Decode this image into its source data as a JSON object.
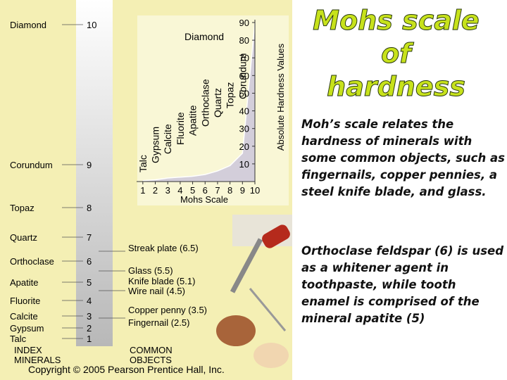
{
  "title_lines": [
    "Mohs scale",
    "of",
    "hardness"
  ],
  "paragraphs": [
    "Moh’s scale relates the hardness of minerals with some common objects, such as fingernails, copper pennies, a steel knife blade, and glass.",
    "Orthoclase feldspar (6) is used as a whitener agent in toothpaste, while tooth enamel is comprised of the mineral apatite (5)"
  ],
  "figure": {
    "index_minerals": [
      {
        "name": "Diamond",
        "hardness": 10
      },
      {
        "name": "Corundum",
        "hardness": 9
      },
      {
        "name": "Topaz",
        "hardness": 8
      },
      {
        "name": "Quartz",
        "hardness": 7
      },
      {
        "name": "Orthoclase",
        "hardness": 6
      },
      {
        "name": "Apatite",
        "hardness": 5
      },
      {
        "name": "Fluorite",
        "hardness": 4
      },
      {
        "name": "Calcite",
        "hardness": 3
      },
      {
        "name": "Gypsum",
        "hardness": 2
      },
      {
        "name": "Talc",
        "hardness": 1
      }
    ],
    "common_objects": [
      "Streak plate (6.5)",
      "Glass (5.5)",
      "Knife blade (5.1)",
      "Wire nail (4.5)",
      "Copper penny (3.5)",
      "Fingernail (2.5)"
    ],
    "index_label": [
      "INDEX",
      "MINERALS"
    ],
    "objects_label": [
      "COMMON",
      "OBJECTS"
    ],
    "copyright": "Copyright © 2005 Pearson Prentice Hall, Inc."
  },
  "chart_data": {
    "type": "line",
    "xlabel": "Mohs Scale",
    "ylabel": "Absolute Hardness Values",
    "x": [
      1,
      2,
      3,
      4,
      5,
      6,
      7,
      8,
      9,
      10
    ],
    "point_labels": [
      "Talc",
      "Gypsum",
      "Calcite",
      "Fluorite",
      "Apatite",
      "Orthoclase",
      "Quartz",
      "Topaz",
      "Corundum",
      "Diamond"
    ],
    "series": [
      {
        "color": "#b9b2dc",
        "values": [
          0.5,
          1,
          2,
          2.5,
          3,
          4,
          6,
          9,
          16,
          90
        ]
      }
    ],
    "xlim": [
      0.5,
      10
    ],
    "ylim": [
      0,
      90
    ],
    "xticks": [
      1,
      2,
      3,
      4,
      5,
      6,
      7,
      8,
      9,
      10
    ],
    "yticks": [
      10,
      20,
      30,
      40,
      50,
      60,
      70,
      80,
      90
    ]
  }
}
